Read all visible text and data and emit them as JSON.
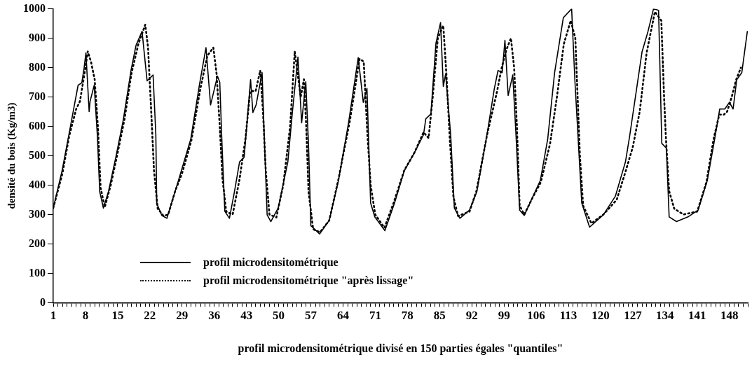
{
  "chart_data": {
    "type": "line",
    "xlabel": "profil microdensitométrique divisé en 150 parties égales \"quantiles\"",
    "ylabel": "densité du bois (Kg/m3)",
    "xlim": [
      1,
      152
    ],
    "ylim": [
      0,
      1000
    ],
    "yticks": [
      0,
      100,
      200,
      300,
      400,
      500,
      600,
      700,
      800,
      900,
      1000
    ],
    "xticks": [
      1,
      {
        "value": 2,
        "label": null
      },
      {
        "value": 3,
        "label": null
      },
      {
        "value": 4,
        "label": null
      },
      {
        "value": 5,
        "label": null
      },
      {
        "value": 6,
        "label": null
      },
      {
        "value": 7,
        "label": null
      },
      8,
      {
        "value": 9,
        "label": null
      },
      {
        "value": 10,
        "label": null
      },
      {
        "value": 11,
        "label": null
      },
      {
        "value": 12,
        "label": null
      },
      {
        "value": 13,
        "label": null
      },
      {
        "value": 14,
        "label": null
      },
      15,
      {
        "value": 16,
        "label": null
      },
      {
        "value": 17,
        "label": null
      },
      {
        "value": 18,
        "label": null
      },
      {
        "value": 19,
        "label": null
      },
      {
        "value": 20,
        "label": null
      },
      {
        "value": 21,
        "label": null
      },
      22,
      {
        "value": 23,
        "label": null
      },
      {
        "value": 24,
        "label": null
      },
      {
        "value": 25,
        "label": null
      },
      {
        "value": 26,
        "label": null
      },
      {
        "value": 27,
        "label": null
      },
      {
        "value": 28,
        "label": null
      },
      29,
      {
        "value": 30,
        "label": null
      },
      {
        "value": 31,
        "label": null
      },
      {
        "value": 32,
        "label": null
      },
      {
        "value": 33,
        "label": null
      },
      {
        "value": 34,
        "label": null
      },
      {
        "value": 35,
        "label": null
      },
      36,
      {
        "value": 37,
        "label": null
      },
      {
        "value": 38,
        "label": null
      },
      {
        "value": 39,
        "label": null
      },
      {
        "value": 40,
        "label": null
      },
      {
        "value": 41,
        "label": null
      },
      {
        "value": 42,
        "label": null
      },
      43,
      {
        "value": 44,
        "label": null
      },
      {
        "value": 45,
        "label": null
      },
      {
        "value": 46,
        "label": null
      },
      {
        "value": 47,
        "label": null
      },
      {
        "value": 48,
        "label": null
      },
      {
        "value": 49,
        "label": null
      },
      50,
      {
        "value": 51,
        "label": null
      },
      {
        "value": 52,
        "label": null
      },
      {
        "value": 53,
        "label": null
      },
      {
        "value": 54,
        "label": null
      },
      {
        "value": 55,
        "label": null
      },
      {
        "value": 56,
        "label": null
      },
      57,
      {
        "value": 58,
        "label": null
      },
      {
        "value": 59,
        "label": null
      },
      {
        "value": 60,
        "label": null
      },
      {
        "value": 61,
        "label": null
      },
      {
        "value": 62,
        "label": null
      },
      {
        "value": 63,
        "label": null
      },
      64,
      {
        "value": 65,
        "label": null
      },
      {
        "value": 66,
        "label": null
      },
      {
        "value": 67,
        "label": null
      },
      {
        "value": 68,
        "label": null
      },
      {
        "value": 69,
        "label": null
      },
      {
        "value": 70,
        "label": null
      },
      71,
      {
        "value": 72,
        "label": null
      },
      {
        "value": 73,
        "label": null
      },
      {
        "value": 74,
        "label": null
      },
      {
        "value": 75,
        "label": null
      },
      {
        "value": 76,
        "label": null
      },
      {
        "value": 77,
        "label": null
      },
      78,
      {
        "value": 79,
        "label": null
      },
      {
        "value": 80,
        "label": null
      },
      {
        "value": 81,
        "label": null
      },
      {
        "value": 82,
        "label": null
      },
      {
        "value": 83,
        "label": null
      },
      {
        "value": 84,
        "label": null
      },
      85,
      {
        "value": 86,
        "label": null
      },
      {
        "value": 87,
        "label": null
      },
      {
        "value": 88,
        "label": null
      },
      {
        "value": 89,
        "label": null
      },
      {
        "value": 90,
        "label": null
      },
      {
        "value": 91,
        "label": null
      },
      92,
      {
        "value": 93,
        "label": null
      },
      {
        "value": 94,
        "label": null
      },
      {
        "value": 95,
        "label": null
      },
      {
        "value": 96,
        "label": null
      },
      {
        "value": 97,
        "label": null
      },
      {
        "value": 98,
        "label": null
      },
      99,
      {
        "value": 100,
        "label": null
      },
      {
        "value": 101,
        "label": null
      },
      {
        "value": 102,
        "label": null
      },
      {
        "value": 103,
        "label": null
      },
      {
        "value": 104,
        "label": null
      },
      {
        "value": 105,
        "label": null
      },
      106,
      {
        "value": 107,
        "label": null
      },
      {
        "value": 108,
        "label": null
      },
      {
        "value": 109,
        "label": null
      },
      {
        "value": 110,
        "label": null
      },
      {
        "value": 111,
        "label": null
      },
      {
        "value": 112,
        "label": null
      },
      113,
      {
        "value": 114,
        "label": null
      },
      {
        "value": 115,
        "label": null
      },
      {
        "value": 116,
        "label": null
      },
      {
        "value": 117,
        "label": null
      },
      {
        "value": 118,
        "label": null
      },
      {
        "value": 119,
        "label": null
      },
      120,
      {
        "value": 121,
        "label": null
      },
      {
        "value": 122,
        "label": null
      },
      {
        "value": 123,
        "label": null
      },
      {
        "value": 124,
        "label": null
      },
      {
        "value": 125,
        "label": null
      },
      {
        "value": 126,
        "label": null
      },
      127,
      {
        "value": 128,
        "label": null
      },
      {
        "value": 129,
        "label": null
      },
      {
        "value": 130,
        "label": null
      },
      {
        "value": 131,
        "label": null
      },
      {
        "value": 132,
        "label": null
      },
      {
        "value": 133,
        "label": null
      },
      134,
      {
        "value": 135,
        "label": null
      },
      {
        "value": 136,
        "label": null
      },
      {
        "value": 137,
        "label": null
      },
      {
        "value": 138,
        "label": null
      },
      {
        "value": 139,
        "label": null
      },
      {
        "value": 140,
        "label": null
      },
      141,
      {
        "value": 142,
        "label": null
      },
      {
        "value": 143,
        "label": null
      },
      {
        "value": 144,
        "label": null
      },
      {
        "value": 145,
        "label": null
      },
      {
        "value": 146,
        "label": null
      },
      {
        "value": 147,
        "label": null
      },
      148,
      {
        "value": 149,
        "label": null
      },
      {
        "value": 150,
        "label": null
      },
      {
        "value": 151,
        "label": null
      },
      {
        "value": 152,
        "label": null
      }
    ],
    "grid": false,
    "legend": "bottom left",
    "marker": "none",
    "series": [
      {
        "name": "profil microdensitométrique",
        "color": "#000000",
        "line_style": "solid",
        "x": [
          1,
          2.9,
          4.5,
          5.6,
          6.4,
          7.2,
          7.7,
          8.1,
          8.8,
          9,
          9.9,
          10.6,
          11.1,
          11.9,
          13,
          14.6,
          16.2,
          17.9,
          19,
          20.3,
          21.4,
          22.7,
          23.3,
          23.5,
          24.6,
          25.7,
          28.2,
          30.9,
          32.8,
          34.2,
          35.2,
          36.7,
          37.2,
          37.7,
          38.3,
          39.3,
          40.4,
          41.5,
          42.5,
          43.9,
          44.4,
          45.1,
          46.4,
          47,
          47.5,
          48.3,
          49.9,
          52,
          53,
          54.2,
          55,
          55.9,
          56.5,
          57,
          58.9,
          61,
          63,
          65.2,
          67.3,
          68.4,
          69.2,
          70,
          70.9,
          73.1,
          75.2,
          77.3,
          79.5,
          81.5,
          82,
          83.1,
          84.2,
          85.2,
          85.8,
          86.3,
          87.4,
          88.2,
          89.4,
          91.5,
          93.1,
          95.3,
          96.9,
          97.7,
          98.6,
          99.2,
          99.9,
          100.9,
          101.6,
          102.4,
          103.4,
          105.3,
          106.9,
          108.5,
          110,
          111.9,
          113.7,
          114.4,
          115.9,
          117.6,
          120.6,
          123.2,
          125.4,
          126.3,
          129,
          130.3,
          131.5,
          132.6,
          133.3,
          134.3,
          134.9,
          136.5,
          139,
          141.2,
          143.2,
          144.8,
          145.9,
          147,
          148,
          148.8,
          149.6,
          150.7,
          151.9
        ],
        "values": [
          322,
          448,
          580,
          673,
          740,
          748,
          798,
          850,
          650,
          685,
          740,
          565,
          378,
          322,
          378,
          495,
          620,
          790,
          876,
          923,
          755,
          775,
          572,
          338,
          297,
          287,
          415,
          557,
          743,
          868,
          673,
          771,
          750,
          533,
          311,
          287,
          378,
          479,
          495,
          759,
          647,
          673,
          783,
          510,
          299,
          276,
          322,
          479,
          650,
          836,
          612,
          752,
          537,
          262,
          234,
          280,
          415,
          612,
          834,
          682,
          729,
          339,
          292,
          245,
          339,
          448,
          510,
          572,
          626,
          642,
          883,
          953,
          736,
          778,
          572,
          322,
          287,
          315,
          378,
          572,
          729,
          790,
          783,
          893,
          705,
          775,
          572,
          315,
          297,
          362,
          416,
          557,
          783,
          970,
          1000,
          759,
          339,
          257,
          299,
          362,
          479,
          565,
          853,
          923,
          1000,
          995,
          542,
          526,
          292,
          276,
          292,
          315,
          416,
          557,
          659,
          659,
          682,
          659,
          759,
          783,
          923
        ]
      },
      {
        "name": "profil microdensitométrique \"après lissage\"",
        "color": "#000000",
        "line_style": "dotted",
        "x": [
          1,
          3,
          4.5,
          6,
          6.8,
          8,
          8.5,
          9.2,
          10,
          10.7,
          11.3,
          12.2,
          13.5,
          15,
          16.5,
          18,
          19.5,
          21,
          21.6,
          22.3,
          22.9,
          23.7,
          25,
          26,
          27.5,
          29,
          31,
          33,
          34.5,
          35.8,
          36.5,
          37.2,
          37.8,
          38.6,
          40,
          41.5,
          42.8,
          43.8,
          45,
          46,
          46.6,
          47.2,
          48,
          49.5,
          51,
          52.5,
          53.5,
          54.8,
          55.5,
          56,
          56.5,
          57.5,
          59,
          61,
          63,
          65.5,
          67.6,
          68.5,
          69.3,
          70,
          71,
          73,
          75,
          77.3,
          79.5,
          81.5,
          82.6,
          83.5,
          84.6,
          85.8,
          86.5,
          87.2,
          88,
          89,
          91.5,
          93,
          95.3,
          97.5,
          98.5,
          99.5,
          100.5,
          101.2,
          101.8,
          102.4,
          103.4,
          105.3,
          107,
          109,
          110.5,
          112,
          113.5,
          114.5,
          115,
          115.5,
          116.2,
          118,
          120.6,
          123.5,
          125.5,
          127,
          128.5,
          130,
          131.8,
          133.2,
          133.8,
          134.2,
          134.9,
          136,
          138,
          141,
          143,
          144.6,
          145.8,
          146.8,
          147.5,
          148.5,
          149.5,
          150.5
        ],
        "values": [
          322,
          440,
          570,
          660,
          685,
          800,
          855,
          820,
          760,
          600,
          390,
          325,
          400,
          510,
          625,
          780,
          880,
          946,
          870,
          650,
          450,
          320,
          295,
          300,
          380,
          440,
          550,
          730,
          840,
          868,
          780,
          600,
          420,
          310,
          300,
          420,
          560,
          720,
          720,
          790,
          650,
          450,
          300,
          290,
          400,
          600,
          855,
          700,
          760,
          600,
          378,
          250,
          240,
          280,
          420,
          620,
          830,
          820,
          572,
          400,
          300,
          255,
          340,
          450,
          510,
          580,
          560,
          700,
          900,
          943,
          770,
          560,
          360,
          295,
          310,
          380,
          570,
          720,
          800,
          860,
          900,
          800,
          600,
          330,
          300,
          360,
          410,
          540,
          700,
          880,
          960,
          900,
          700,
          500,
          330,
          270,
          300,
          350,
          450,
          530,
          650,
          850,
          990,
          960,
          700,
          560,
          380,
          320,
          300,
          310,
          410,
          560,
          640,
          640,
          650,
          700,
          760,
          800
        ]
      }
    ]
  }
}
